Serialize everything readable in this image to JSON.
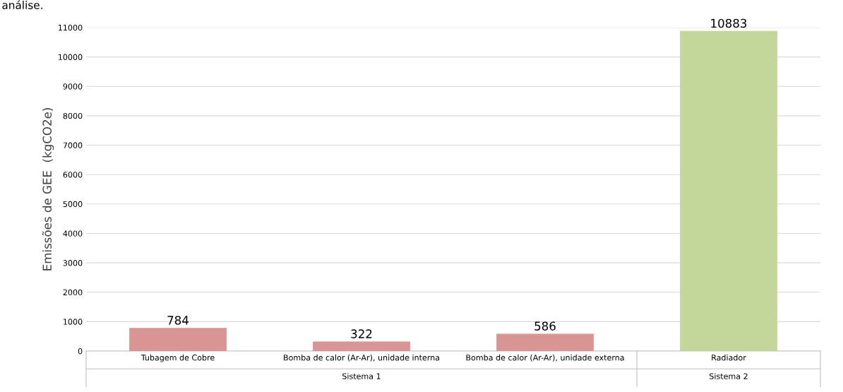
{
  "chart_data": {
    "type": "bar",
    "ylabel": "Emissões de GEE  (kgCO2e)",
    "categories": [
      "Tubagem de Cobre",
      "Bomba de calor (Ar-Ar), unidade interna",
      "Bomba de calor (Ar-Ar), unidade externa",
      "Radiador"
    ],
    "values": [
      784,
      322,
      586,
      10883
    ],
    "colors": [
      "#d99594",
      "#d99594",
      "#d99594",
      "#c4d79b"
    ],
    "ylim": [
      0,
      11000
    ],
    "yticks": [
      0,
      1000,
      2000,
      3000,
      4000,
      5000,
      6000,
      7000,
      8000,
      9000,
      10000,
      11000
    ],
    "grid": "y",
    "data_labels": true,
    "annotations": [
      "análise.",
      "Sistema 1",
      "Sistema 2"
    ]
  }
}
